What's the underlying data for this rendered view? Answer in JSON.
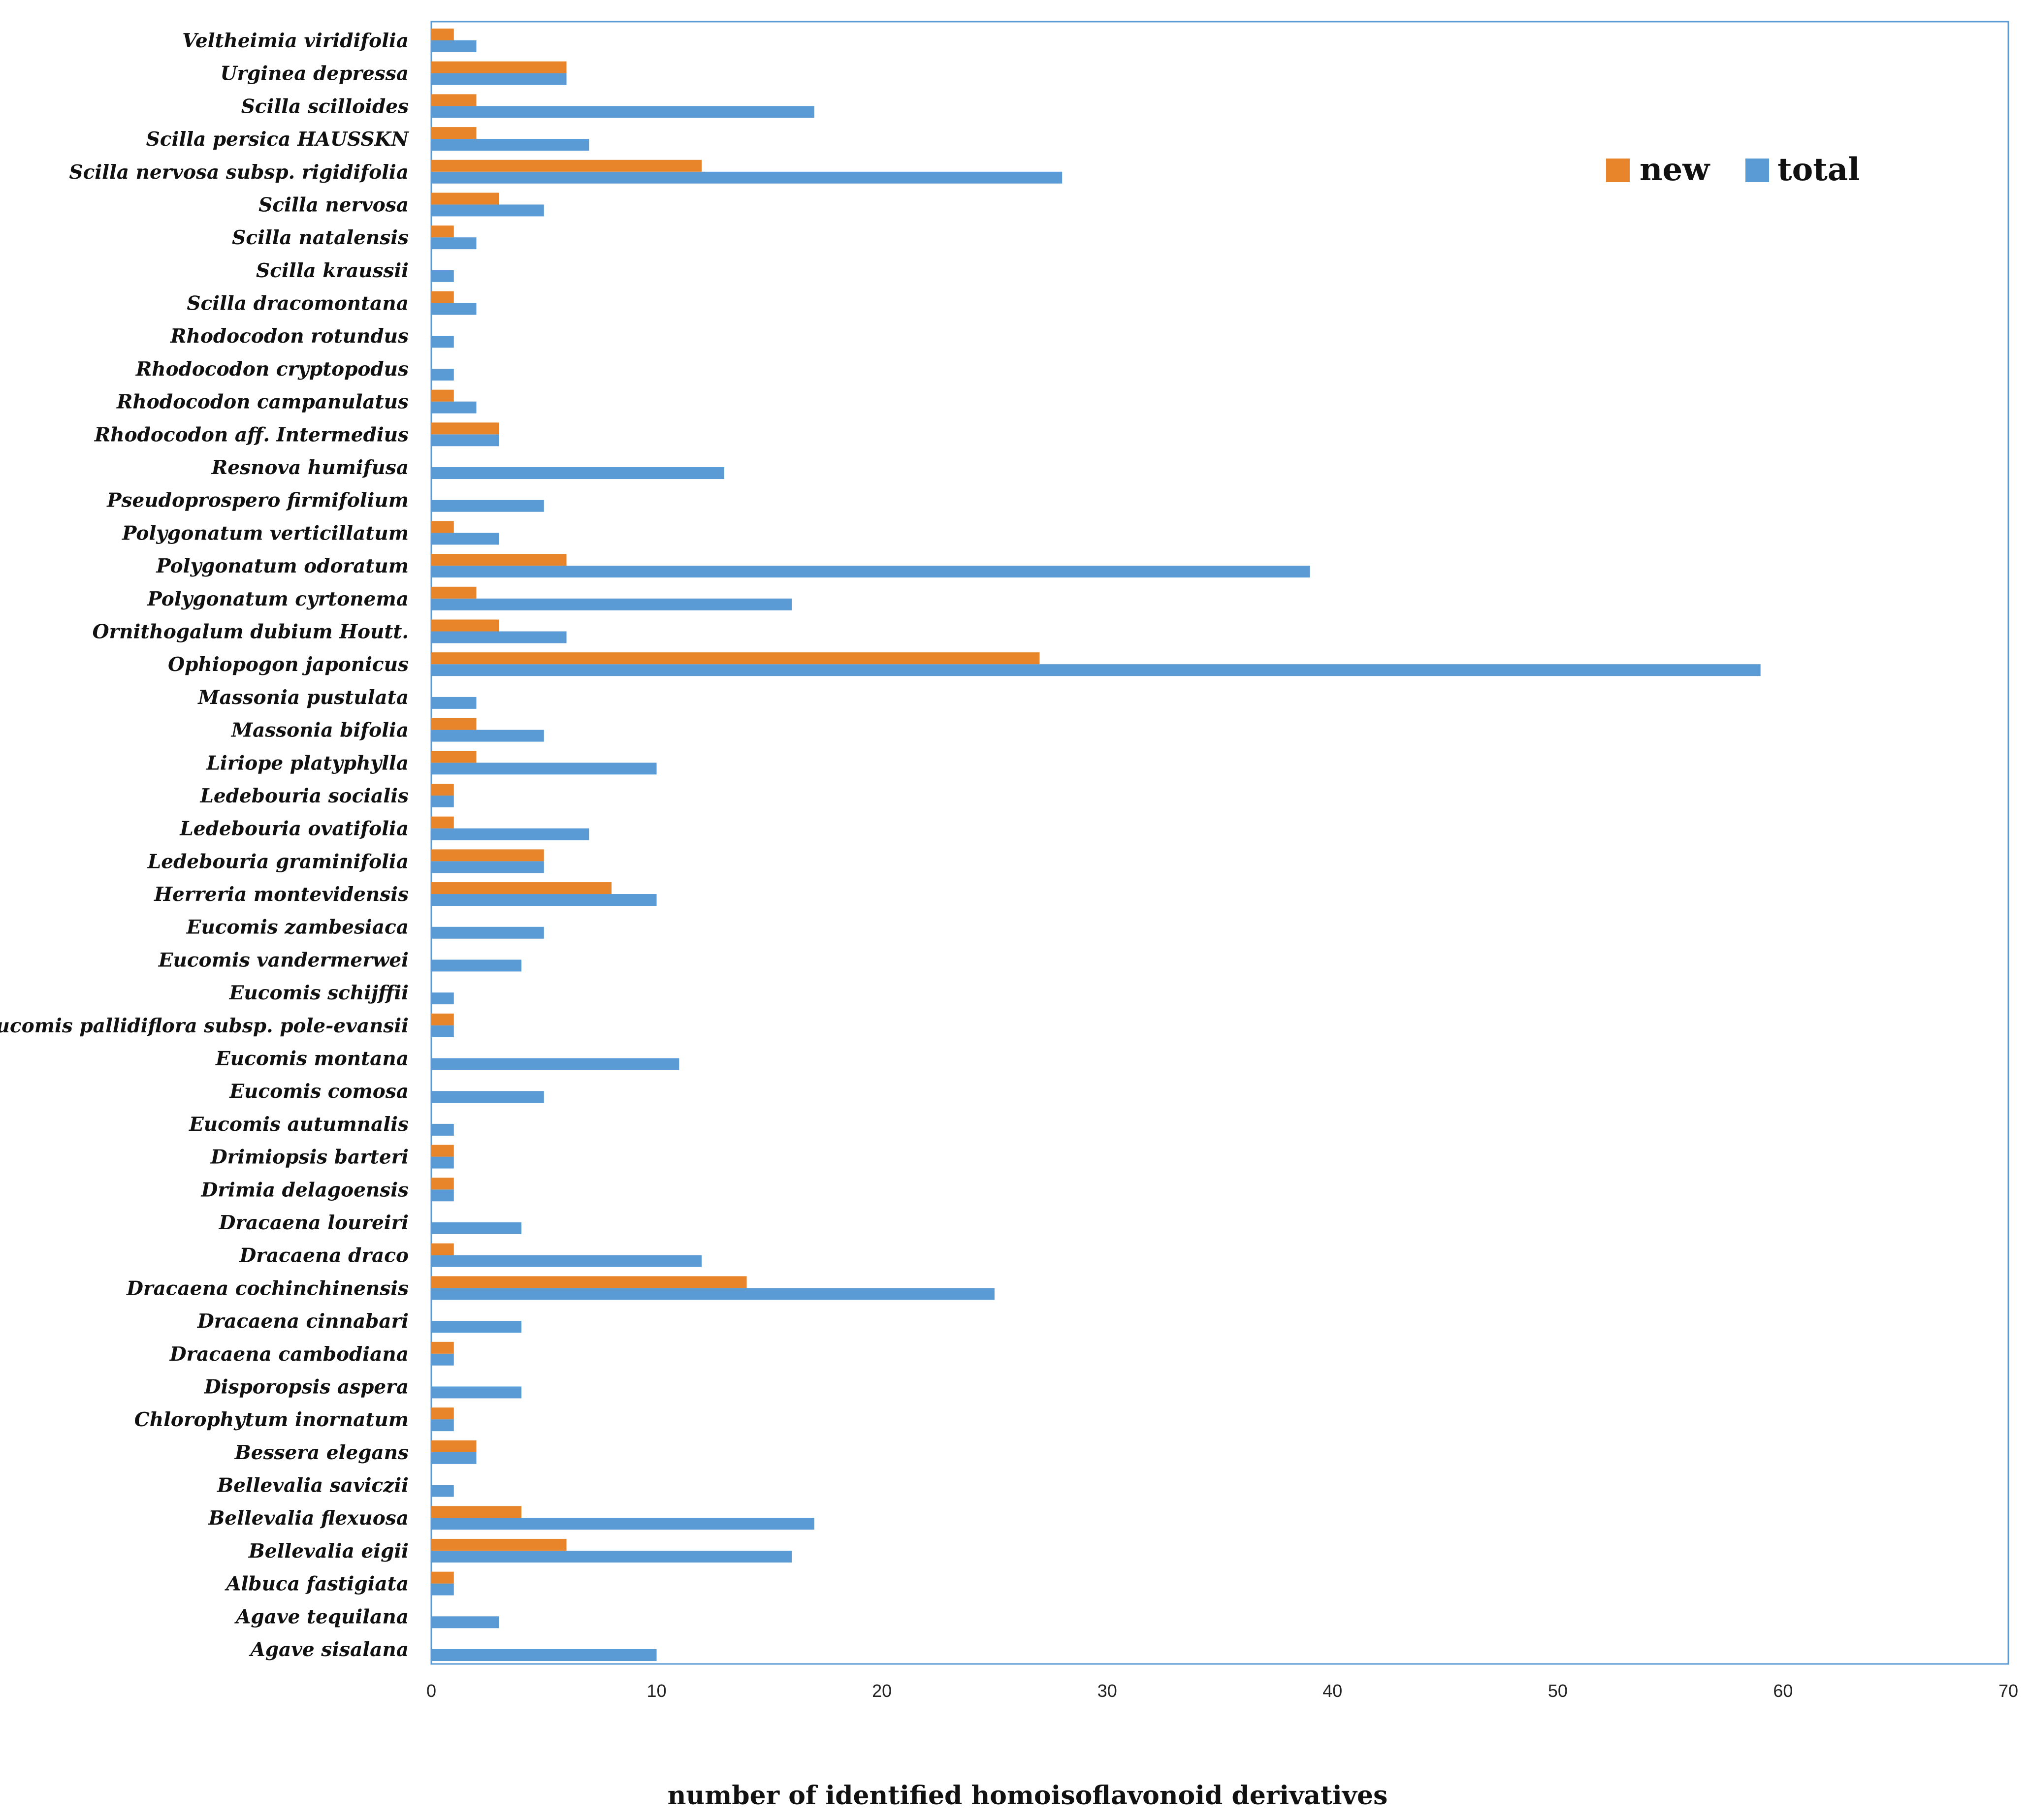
{
  "chart_data": {
    "type": "bar",
    "orientation": "horizontal",
    "title": "",
    "xlabel": "number of identified homoisoflavonoid derivatives",
    "ylabel": "",
    "xlim": [
      0,
      70
    ],
    "xticks": [
      0,
      10,
      20,
      30,
      40,
      50,
      60,
      70
    ],
    "grid": false,
    "legend_position": "top-right",
    "categories": [
      "Veltheimia viridifolia",
      "Urginea depressa",
      "Scilla scilloides",
      "Scilla persica HAUSSKN",
      "Scilla nervosa subsp. rigidifolia",
      "Scilla nervosa",
      "Scilla natalensis",
      "Scilla kraussii",
      "Scilla dracomontana",
      "Rhodocodon rotundus",
      "Rhodocodon cryptopodus",
      "Rhodocodon campanulatus",
      "Rhodocodon aff. Intermedius",
      "Resnova humifusa",
      "Pseudoprospero firmifolium",
      "Polygonatum verticillatum",
      "Polygonatum odoratum",
      "Polygonatum cyrtonema",
      "Ornithogalum dubium Houtt.",
      "Ophiopogon japonicus",
      "Massonia pustulata",
      "Massonia bifolia",
      "Liriope platyphylla",
      "Ledebouria socialis",
      "Ledebouria ovatifolia",
      "Ledebouria graminifolia",
      "Herreria montevidensis",
      "Eucomis zambesiaca",
      "Eucomis vandermerwei",
      "Eucomis schijffii",
      "Eucomis pallidiflora subsp. pole-evansii",
      "Eucomis montana",
      "Eucomis comosa",
      "Eucomis autumnalis",
      "Drimiopsis barteri",
      "Drimia delagoensis",
      "Dracaena loureiri",
      "Dracaena draco",
      "Dracaena cochinchinensis",
      "Dracaena cinnabari",
      "Dracaena cambodiana",
      "Disporopsis aspera",
      "Chlorophytum inornatum",
      "Bessera elegans",
      "Bellevalia saviczii",
      "Bellevalia flexuosa",
      "Bellevalia eigii",
      "Albuca fastigiata",
      "Agave tequilana",
      "Agave sisalana"
    ],
    "series": [
      {
        "name": "new",
        "color": "#e8852a",
        "values": [
          1,
          6,
          2,
          2,
          12,
          3,
          1,
          0,
          1,
          0,
          0,
          1,
          3,
          0,
          0,
          1,
          6,
          2,
          3,
          27,
          0,
          2,
          2,
          1,
          1,
          5,
          8,
          0,
          0,
          0,
          1,
          0,
          0,
          0,
          1,
          1,
          0,
          1,
          14,
          0,
          1,
          0,
          1,
          2,
          0,
          4,
          6,
          1,
          0,
          0
        ]
      },
      {
        "name": "total",
        "color": "#5b9bd5",
        "values": [
          2,
          6,
          17,
          7,
          28,
          5,
          2,
          1,
          2,
          1,
          1,
          2,
          3,
          13,
          5,
          3,
          39,
          16,
          6,
          59,
          2,
          5,
          10,
          1,
          7,
          5,
          10,
          5,
          4,
          1,
          1,
          11,
          5,
          1,
          1,
          1,
          4,
          12,
          25,
          4,
          1,
          4,
          1,
          2,
          1,
          17,
          16,
          1,
          3,
          10
        ]
      }
    ]
  }
}
